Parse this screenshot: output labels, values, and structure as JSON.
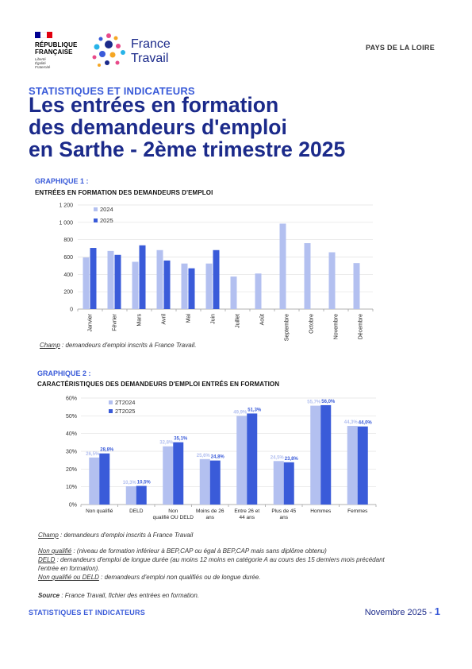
{
  "header": {
    "rf_lines": [
      "RÉPUBLIQUE",
      "FRANÇAISE"
    ],
    "rf_motto": [
      "Liberté",
      "Égalité",
      "Fraternité"
    ],
    "ft_brand": [
      "France",
      "Travail"
    ],
    "region": "PAYS DE LA LOIRE"
  },
  "kicker": "STATISTIQUES ET INDICATEURS",
  "title_lines": [
    "Les entrées en formation",
    "des demandeurs d'emploi",
    "en Sarthe - 2ème trimestre 2025"
  ],
  "colors": {
    "light": "#b3c0f0",
    "dark": "#3a5bd9",
    "navy": "#1b2a8a"
  },
  "graph1": {
    "label": "GRAPHIQUE 1 :",
    "subtitle": "ENTRÉES EN FORMATION DES DEMANDEURS D'EMPLOI",
    "champ_label": "Champ",
    "champ_text": " : demandeurs d'emploi inscrits à France Travail."
  },
  "graph2": {
    "label": "GRAPHIQUE 2 :",
    "subtitle": "CARACTÉRISTIQUES DES DEMANDEURS D'EMPLOI ENTRÉS EN FORMATION",
    "champ_label": "Champ",
    "champ_text": " : demandeurs d'emploi inscrits à France Travail"
  },
  "definitions": [
    {
      "term": "Non qualifié",
      "text": " : (niveau de formation inférieur à BEP,CAP ou égal à BEP,CAP mais sans diplôme obtenu)"
    },
    {
      "term": "DELD",
      "text": " : demandeurs d'emploi de longue durée (au moins 12 moins en catégorie A au cours des 15 derniers mois précédant l'entrée en formation)."
    },
    {
      "term": "Non qualifié ou DELD",
      "text": " : demandeurs d'emploi non qualifiés ou de longue durée."
    }
  ],
  "source": {
    "label": "Source",
    "text": " : France Travail, fichier des entrées en formation."
  },
  "footer": {
    "left": "STATISTIQUES ET INDICATEURS",
    "date": "Novembre 2025",
    "page": "1"
  },
  "chart_data": [
    {
      "type": "bar",
      "categories": [
        "Janvier",
        "Février",
        "Mars",
        "Avril",
        "Mai",
        "Juin",
        "Juillet",
        "Août",
        "Septembre",
        "Octobre",
        "Novembre",
        "Décembre"
      ],
      "series": [
        {
          "name": "2024",
          "values": [
            595,
            670,
            545,
            680,
            525,
            525,
            375,
            410,
            985,
            760,
            655,
            530
          ]
        },
        {
          "name": "2025",
          "values": [
            705,
            625,
            735,
            560,
            470,
            680,
            null,
            null,
            null,
            null,
            null,
            null
          ]
        }
      ],
      "yticks": [
        "0",
        "200",
        "400",
        "600",
        "800",
        "1 000",
        "1 200"
      ],
      "ylim": [
        0,
        1200
      ],
      "legend": "top-left",
      "grid": true
    },
    {
      "type": "bar",
      "categories": [
        "Non qualifié",
        "DELD",
        "Non qualifié OU DELD",
        "Moins de 26 ans",
        "Entre 26 et 44 ans",
        "Plus de 45 ans",
        "Hommes",
        "Femmes"
      ],
      "series": [
        {
          "name": "2T2024",
          "values": [
            26.5,
            10.3,
            32.8,
            25.6,
            49.9,
            24.5,
            55.7,
            44.3
          ],
          "labels": [
            "26,5%",
            "10,3%",
            "32,8%",
            "25,6%",
            "49,9%",
            "24,5%",
            "55,7%",
            "44,3%"
          ]
        },
        {
          "name": "2T2025",
          "values": [
            28.8,
            10.5,
            35.1,
            24.8,
            51.3,
            23.8,
            56.0,
            44.0
          ],
          "labels": [
            "28,8%",
            "10,5%",
            "35,1%",
            "24,8%",
            "51,3%",
            "23,8%",
            "56,0%",
            "44,0%"
          ]
        }
      ],
      "yticks": [
        "0%",
        "10%",
        "20%",
        "30%",
        "40%",
        "50%",
        "60%"
      ],
      "ylim": [
        0,
        60
      ],
      "legend": "top-left",
      "grid": true
    }
  ]
}
